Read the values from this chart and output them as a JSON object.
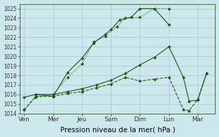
{
  "xlabel": "Pression niveau de la mer( hPa )",
  "background_color": "#cce8ed",
  "grid_color": "#aacccc",
  "line_color": "#1a5c1a",
  "ylim": [
    1014,
    1025.5
  ],
  "yticks": [
    1014,
    1015,
    1016,
    1017,
    1018,
    1019,
    1020,
    1021,
    1022,
    1023,
    1024,
    1025
  ],
  "x_labels": [
    "Ven",
    "Mer",
    "Jeu",
    "Sam",
    "Dim",
    "Lun",
    "Mar"
  ],
  "x_positions": [
    0,
    1,
    2,
    3,
    4,
    5,
    6
  ],
  "xlim": [
    -0.15,
    6.6
  ],
  "series": [
    {
      "x": [
        0,
        0.4,
        1.0,
        1.5,
        2.0,
        2.4,
        2.8,
        3.2,
        3.5,
        4.0,
        4.5,
        5.0
      ],
      "y": [
        1014.4,
        1015.7,
        1016.0,
        1017.8,
        1019.2,
        1021.5,
        1022.1,
        1023.1,
        1024.0,
        1024.1,
        1025.0,
        1025.0
      ],
      "linestyle": ":"
    },
    {
      "x": [
        0.4,
        1.0,
        1.5,
        2.0,
        2.4,
        2.8,
        3.0,
        3.3,
        3.7,
        4.0,
        4.5,
        5.0
      ],
      "y": [
        1016.0,
        1015.8,
        1018.3,
        1019.8,
        1021.4,
        1022.3,
        1022.8,
        1023.8,
        1024.1,
        1025.0,
        1025.0,
        1023.3
      ],
      "linestyle": "-"
    },
    {
      "x": [
        0,
        0.4,
        1.0,
        1.5,
        2.0,
        2.5,
        3.0,
        3.5,
        4.0,
        4.5,
        5.0,
        5.5,
        5.7,
        6.0,
        6.3
      ],
      "y": [
        1015.7,
        1016.0,
        1016.0,
        1016.3,
        1016.6,
        1017.0,
        1017.5,
        1018.2,
        1019.1,
        1019.9,
        1021.0,
        1017.8,
        1015.3,
        1015.4,
        1018.2
      ],
      "linestyle": "-"
    },
    {
      "x": [
        0,
        0.4,
        1.0,
        1.5,
        2.0,
        2.5,
        3.0,
        3.5,
        4.0,
        4.5,
        5.0,
        5.5,
        5.7,
        6.0,
        6.3
      ],
      "y": [
        1014.4,
        1015.8,
        1015.8,
        1016.1,
        1016.3,
        1016.7,
        1017.1,
        1017.8,
        1017.4,
        1017.6,
        1017.8,
        1014.4,
        1014.3,
        1015.5,
        1018.2
      ],
      "linestyle": "--"
    }
  ]
}
